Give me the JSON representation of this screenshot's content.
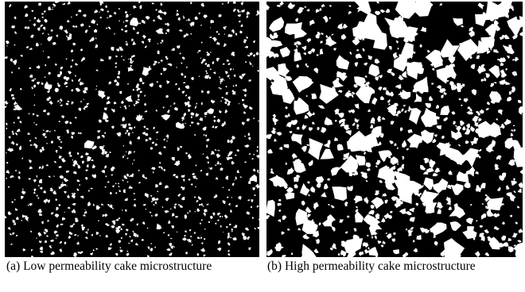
{
  "panels": [
    {
      "id": "a",
      "caption": "(a) Low permeability cake microstructure",
      "pore_color": "#ffffff",
      "background_color": "#000000"
    },
    {
      "id": "b",
      "caption": "(b) High permeability cake microstructure",
      "pore_color": "#ffffff",
      "background_color": "#000000"
    }
  ]
}
